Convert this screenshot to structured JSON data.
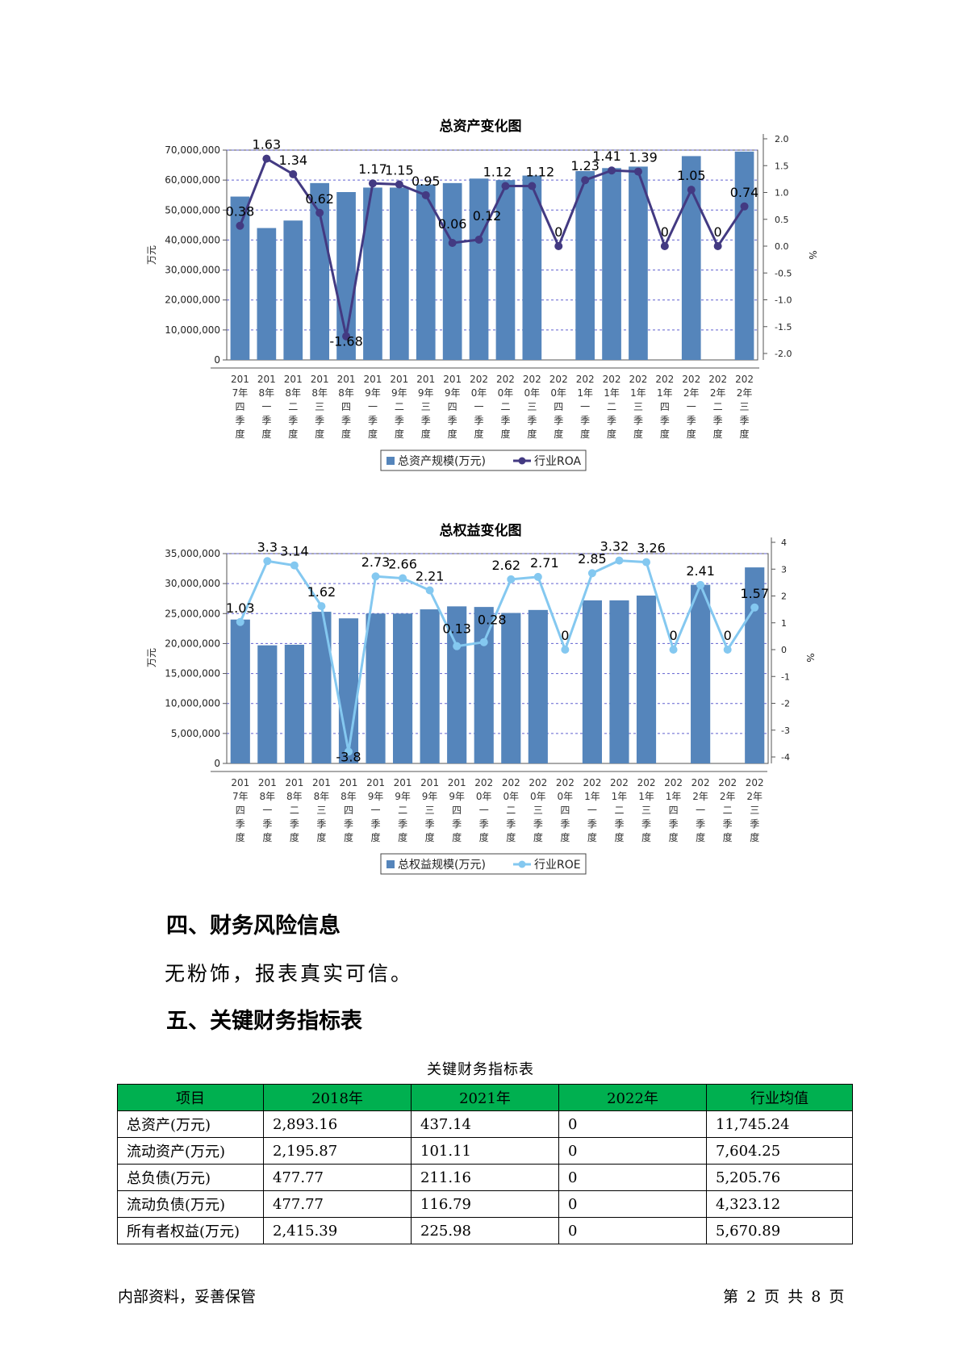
{
  "chart_data": [
    {
      "type": "bar",
      "title": "总资产变化图",
      "ylabel": "万元",
      "y2label": "%",
      "ylim": [
        0,
        70000000
      ],
      "y2lim": [
        -2.0,
        2.0
      ],
      "yticks": [
        "0",
        "10,000,000",
        "20,000,000",
        "30,000,000",
        "40,000,000",
        "50,000,000",
        "60,000,000",
        "70,000,000"
      ],
      "y2ticks": [
        "-2.0",
        "-1.5",
        "-1.0",
        "-0.5",
        "0.0",
        "0.5",
        "1.0",
        "1.5",
        "2.0"
      ],
      "grid": true,
      "legend_position": "bottom",
      "categories": [
        [
          "201",
          "7年",
          "四",
          "季",
          "度"
        ],
        [
          "201",
          "8年",
          "一",
          "季",
          "度"
        ],
        [
          "201",
          "8年",
          "二",
          "季",
          "度"
        ],
        [
          "201",
          "8年",
          "三",
          "季",
          "度"
        ],
        [
          "201",
          "8年",
          "四",
          "季",
          "度"
        ],
        [
          "201",
          "9年",
          "一",
          "季",
          "度"
        ],
        [
          "201",
          "9年",
          "二",
          "季",
          "度"
        ],
        [
          "201",
          "9年",
          "三",
          "季",
          "度"
        ],
        [
          "201",
          "9年",
          "四",
          "季",
          "度"
        ],
        [
          "202",
          "0年",
          "一",
          "季",
          "度"
        ],
        [
          "202",
          "0年",
          "二",
          "季",
          "度"
        ],
        [
          "202",
          "0年",
          "三",
          "季",
          "度"
        ],
        [
          "202",
          "0年",
          "四",
          "季",
          "度"
        ],
        [
          "202",
          "1年",
          "一",
          "季",
          "度"
        ],
        [
          "202",
          "1年",
          "二",
          "季",
          "度"
        ],
        [
          "202",
          "1年",
          "三",
          "季",
          "度"
        ],
        [
          "202",
          "1年",
          "四",
          "季",
          "度"
        ],
        [
          "202",
          "2年",
          "一",
          "季",
          "度"
        ],
        [
          "202",
          "2年",
          "二",
          "季",
          "度"
        ],
        [
          "202",
          "2年",
          "三",
          "季",
          "度"
        ]
      ],
      "series": [
        {
          "name": "总资产规模(万元)",
          "kind": "bar",
          "color": "#5585bb",
          "values": [
            54500000,
            44000000,
            46500000,
            59000000,
            56000000,
            57500000,
            57500000,
            58500000,
            59000000,
            60500000,
            60000000,
            61500000,
            0,
            63000000,
            64000000,
            64500000,
            0,
            68000000,
            0,
            69500000
          ]
        },
        {
          "name": "行业ROA",
          "kind": "line",
          "color": "#433a82",
          "values": [
            0.38,
            1.63,
            1.34,
            0.62,
            -1.68,
            1.17,
            1.15,
            0.95,
            0.06,
            0.12,
            1.12,
            1.12,
            0,
            1.23,
            1.41,
            1.39,
            0,
            1.05,
            0,
            0.74
          ],
          "labels": [
            "0.38",
            "1.63",
            "1.34",
            "0.62",
            "-1.68",
            "1.17",
            "1.15",
            "0.95",
            "0.06",
            "0.12",
            "1.12",
            "1.12",
            "0",
            "1.23",
            "1.41",
            "1.39",
            "0",
            "1.05",
            "0",
            "0.74"
          ]
        }
      ]
    },
    {
      "type": "bar",
      "title": "总权益变化图",
      "ylabel": "万元",
      "y2label": "%",
      "ylim": [
        0,
        35000000
      ],
      "y2lim": [
        -4,
        4
      ],
      "yticks": [
        "0",
        "5,000,000",
        "10,000,000",
        "15,000,000",
        "20,000,000",
        "25,000,000",
        "30,000,000",
        "35,000,000"
      ],
      "y2ticks": [
        "-4",
        "-3",
        "-2",
        "-1",
        "0",
        "1",
        "2",
        "3",
        "4"
      ],
      "grid": true,
      "legend_position": "bottom",
      "categories": [
        [
          "201",
          "7年",
          "四",
          "季",
          "度"
        ],
        [
          "201",
          "8年",
          "一",
          "季",
          "度"
        ],
        [
          "201",
          "8年",
          "二",
          "季",
          "度"
        ],
        [
          "201",
          "8年",
          "三",
          "季",
          "度"
        ],
        [
          "201",
          "8年",
          "四",
          "季",
          "度"
        ],
        [
          "201",
          "9年",
          "一",
          "季",
          "度"
        ],
        [
          "201",
          "9年",
          "二",
          "季",
          "度"
        ],
        [
          "201",
          "9年",
          "三",
          "季",
          "度"
        ],
        [
          "201",
          "9年",
          "四",
          "季",
          "度"
        ],
        [
          "202",
          "0年",
          "一",
          "季",
          "度"
        ],
        [
          "202",
          "0年",
          "二",
          "季",
          "度"
        ],
        [
          "202",
          "0年",
          "三",
          "季",
          "度"
        ],
        [
          "202",
          "0年",
          "四",
          "季",
          "度"
        ],
        [
          "202",
          "1年",
          "一",
          "季",
          "度"
        ],
        [
          "202",
          "1年",
          "二",
          "季",
          "度"
        ],
        [
          "202",
          "1年",
          "三",
          "季",
          "度"
        ],
        [
          "202",
          "1年",
          "四",
          "季",
          "度"
        ],
        [
          "202",
          "2年",
          "一",
          "季",
          "度"
        ],
        [
          "202",
          "2年",
          "二",
          "季",
          "度"
        ],
        [
          "202",
          "2年",
          "三",
          "季",
          "度"
        ]
      ],
      "series": [
        {
          "name": "总权益规模(万元)",
          "kind": "bar",
          "color": "#5585bb",
          "values": [
            24000000,
            19700000,
            19800000,
            25300000,
            24200000,
            25000000,
            25000000,
            25700000,
            26200000,
            26100000,
            25100000,
            25600000,
            0,
            27200000,
            27200000,
            28000000,
            0,
            29800000,
            0,
            32700000
          ]
        },
        {
          "name": "行业ROE",
          "kind": "line",
          "color": "#84c8f0",
          "values": [
            1.03,
            3.3,
            3.14,
            1.62,
            -3.8,
            2.73,
            2.66,
            2.21,
            0.13,
            0.28,
            2.62,
            2.71,
            0,
            2.85,
            3.32,
            3.26,
            0,
            2.41,
            0,
            1.57
          ],
          "labels": [
            "1.03",
            "3.3",
            "3.14",
            "1.62",
            "-3.8",
            "2.73",
            "2.66",
            "2.21",
            "0.13",
            "0.28",
            "2.62",
            "2.71",
            "0",
            "2.85",
            "3.32",
            "3.26",
            "0",
            "2.41",
            "0",
            "1.57"
          ]
        }
      ]
    }
  ],
  "sections": {
    "risk_heading": "四、财务风险信息",
    "risk_text": "无粉饰，报表真实可信。",
    "kfi_heading": "五、关键财务指标表"
  },
  "table": {
    "caption": "关键财务指标表",
    "headers": [
      "项目",
      "2018年",
      "2021年",
      "2022年",
      "行业均值"
    ],
    "rows": [
      [
        "总资产(万元)",
        "2,893.16",
        "437.14",
        "0",
        "11,745.24"
      ],
      [
        "流动资产(万元)",
        "2,195.87",
        "101.11",
        "0",
        "7,604.25"
      ],
      [
        "总负债(万元)",
        "477.77",
        "211.16",
        "0",
        "5,205.76"
      ],
      [
        "流动负债(万元)",
        "477.77",
        "116.79",
        "0",
        "4,323.12"
      ],
      [
        "所有者权益(万元)",
        "2,415.39",
        "225.98",
        "0",
        "5,670.89"
      ]
    ]
  },
  "footer": {
    "left": "内部资料，妥善保管",
    "right": "第 2 页  共 8 页"
  }
}
